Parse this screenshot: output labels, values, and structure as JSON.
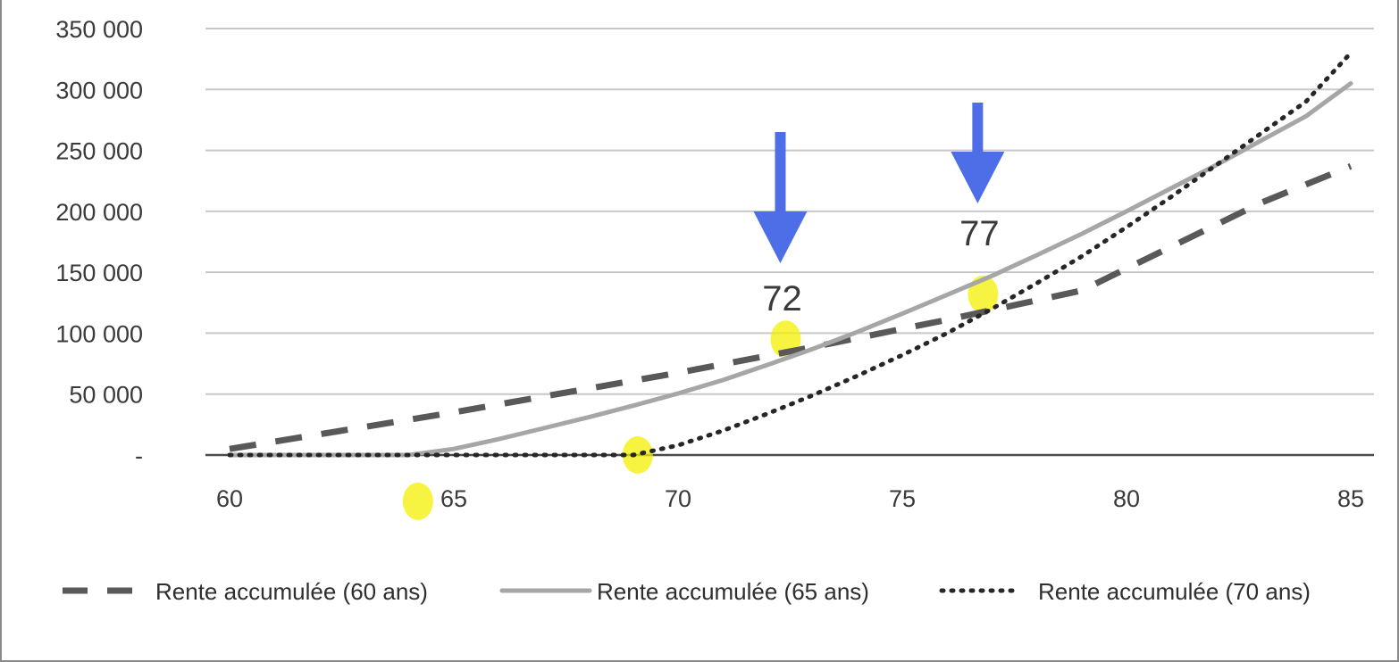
{
  "chart_data": {
    "type": "line",
    "x": [
      60,
      61,
      62,
      63,
      64,
      65,
      66,
      67,
      68,
      69,
      70,
      71,
      72,
      73,
      74,
      75,
      76,
      77,
      78,
      79,
      80,
      81,
      82,
      83,
      84,
      85
    ],
    "xlim": [
      60,
      85
    ],
    "ylim": [
      0,
      350000
    ],
    "x_ticks": [
      60,
      65,
      70,
      75,
      80,
      85
    ],
    "y_ticks": [
      0,
      50000,
      100000,
      150000,
      200000,
      250000,
      300000,
      350000
    ],
    "y_tick_labels": [
      "-",
      "50 000",
      "100 000",
      "150 000",
      "200 000",
      "250 000",
      "300 000",
      "350 000"
    ],
    "x_tick_labels": [
      "60",
      "65",
      "70",
      "75",
      "80",
      "85"
    ],
    "grid": true,
    "legend_position": "bottom",
    "series": [
      {
        "name": "Rente accumulée (60 ans)",
        "style": "dashed",
        "color": "#595959",
        "values": [
          5000,
          11000,
          17000,
          23000,
          29000,
          35000,
          41500,
          48000,
          54500,
          61000,
          67500,
          74500,
          81500,
          88500,
          96000,
          103500,
          111000,
          119000,
          127000,
          135000,
          153000,
          171000,
          189000,
          207000,
          222000,
          237000
        ]
      },
      {
        "name": "Rente accumulée (65 ans)",
        "style": "solid",
        "color": "#a6a6a6",
        "values": [
          0,
          0,
          0,
          0,
          0,
          5000,
          13000,
          22000,
          31000,
          40500,
          50500,
          61500,
          74000,
          87000,
          101000,
          116000,
          131500,
          147000,
          164000,
          181500,
          200000,
          219000,
          238000,
          258000,
          278000,
          305000
        ]
      },
      {
        "name": "Rente accumulée (70 ans)",
        "style": "dotted",
        "color": "#262626",
        "values": [
          0,
          0,
          0,
          0,
          0,
          0,
          0,
          0,
          0,
          0,
          8000,
          20000,
          34000,
          49000,
          65000,
          82000,
          100000,
          120000,
          141000,
          163000,
          187000,
          212000,
          238000,
          264000,
          290000,
          330000
        ]
      }
    ],
    "annotations": [
      {
        "label": "72",
        "x": 72.4,
        "y": 95000,
        "marker": "down-arrow",
        "color": "#4e6ee8"
      },
      {
        "label": "77",
        "x": 76.8,
        "y": 132000,
        "marker": "down-arrow",
        "color": "#4e6ee8"
      }
    ],
    "highlights": [
      {
        "x": 64.2,
        "y": -38000
      },
      {
        "x": 69.1,
        "y": 0
      },
      {
        "x": 72.4,
        "y": 95000
      },
      {
        "x": 76.8,
        "y": 132000
      }
    ],
    "highlight_color": "#f3f000"
  }
}
